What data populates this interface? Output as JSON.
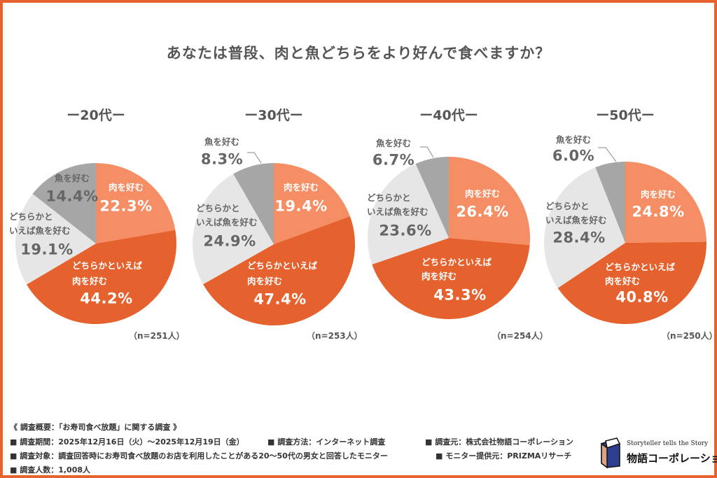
{
  "title": "あなたは普段、肉と魚どちらをより好んで食べますか？",
  "colors": {
    "meat": "#F58E64",
    "lean_meat": "#E5622F",
    "lean_fish": "#E6E6E6",
    "fish": "#A6A6A6",
    "frame": "#E8622F"
  },
  "chart_data": [
    {
      "type": "pie",
      "title": "ー20代ー",
      "n_label": "（n=251人）",
      "categories": [
        "肉を好む",
        "どちらかといえば肉を好む",
        "どちらかといえば魚を好む",
        "魚を好む"
      ],
      "values": [
        22.3,
        44.2,
        19.1,
        14.4
      ],
      "labels": [
        {
          "lines": [
            "肉を好む"
          ],
          "pct": "22.3%"
        },
        {
          "lines": [
            "どちらかといえば",
            "肉を好む"
          ],
          "pct": "44.2%"
        },
        {
          "lines": [
            "どちらかと",
            "いえば魚を好む"
          ],
          "pct": "19.1%"
        },
        {
          "lines": [
            "魚を好む"
          ],
          "pct": "14.4%"
        }
      ]
    },
    {
      "type": "pie",
      "title": "ー30代ー",
      "n_label": "（n=253人）",
      "categories": [
        "肉を好む",
        "どちらかといえば肉を好む",
        "どちらかといえば魚を好む",
        "魚を好む"
      ],
      "values": [
        19.4,
        47.4,
        24.9,
        8.3
      ],
      "labels": [
        {
          "lines": [
            "肉を好む"
          ],
          "pct": "19.4%"
        },
        {
          "lines": [
            "どちらかといえば",
            "肉を好む"
          ],
          "pct": "47.4%"
        },
        {
          "lines": [
            "どちらかと",
            "いえば魚を好む"
          ],
          "pct": "24.9%"
        },
        {
          "lines": [
            "魚を好む"
          ],
          "pct": "8.3%"
        }
      ]
    },
    {
      "type": "pie",
      "title": "ー40代ー",
      "n_label": "（n=254人）",
      "categories": [
        "肉を好む",
        "どちらかといえば肉を好む",
        "どちらかといえば魚を好む",
        "魚を好む"
      ],
      "values": [
        26.4,
        43.3,
        23.6,
        6.7
      ],
      "labels": [
        {
          "lines": [
            "肉を好む"
          ],
          "pct": "26.4%"
        },
        {
          "lines": [
            "どちらかといえば",
            "肉を好む"
          ],
          "pct": "43.3%"
        },
        {
          "lines": [
            "どちらかと",
            "いえば魚を好む"
          ],
          "pct": "23.6%"
        },
        {
          "lines": [
            "魚を好む"
          ],
          "pct": "6.7%"
        }
      ]
    },
    {
      "type": "pie",
      "title": "ー50代ー",
      "n_label": "（n=250人）",
      "categories": [
        "肉を好む",
        "どちらかといえば肉を好む",
        "どちらかといえば魚を好む",
        "魚を好む"
      ],
      "values": [
        24.8,
        40.8,
        28.4,
        6.0
      ],
      "labels": [
        {
          "lines": [
            "肉を好む"
          ],
          "pct": "24.8%"
        },
        {
          "lines": [
            "どちらかといえば",
            "肉を好む"
          ],
          "pct": "40.8%"
        },
        {
          "lines": [
            "どちらかと",
            "いえば魚を好む"
          ],
          "pct": "28.4%"
        },
        {
          "lines": [
            "魚を好む"
          ],
          "pct": "6.0%"
        }
      ]
    }
  ],
  "footer": {
    "summary": "《 調査概要：「お寿司食べ放題」に関する調査 》",
    "period": "■ 調査期間：2025年12月16日（火）～2025年12月19日（金）",
    "method": "■ 調査方法：インターネット調査",
    "source": "■ 調査元：株式会社物語コーポレーション",
    "target": "■ 調査対象：調査回答時にお寿司食べ放題のお店を利用したことがある20～50代の男女と回答したモニター",
    "provider": "■ モニター提供元：PRIZMAリサーチ",
    "count": "■ 調査人数：1,008人"
  },
  "logo": {
    "tagline": "Storyteller tells the Story",
    "name": "物語コーポレーション"
  }
}
